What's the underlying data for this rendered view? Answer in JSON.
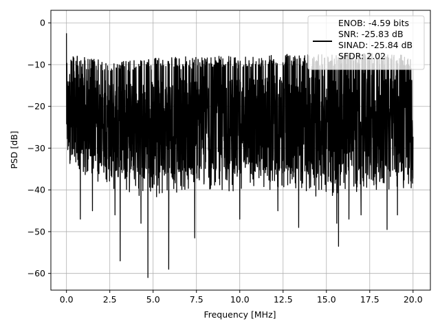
{
  "chart_data": {
    "type": "line",
    "title": "",
    "xlabel": "Frequency [MHz]",
    "ylabel": "PSD [dB]",
    "xlim": [
      -0.9,
      21.0
    ],
    "ylim": [
      -64,
      3
    ],
    "grid": true,
    "legend_position": "top-right",
    "x_ticks": [
      0.0,
      2.5,
      5.0,
      7.5,
      10.0,
      12.5,
      15.0,
      17.5,
      20.0
    ],
    "x_tick_labels": [
      "0.0",
      "2.5",
      "5.0",
      "7.5",
      "10.0",
      "12.5",
      "15.0",
      "17.5",
      "20.0"
    ],
    "y_ticks": [
      0,
      -10,
      -20,
      -30,
      -40,
      -50,
      -60
    ],
    "y_tick_labels": [
      "0",
      "−10",
      "−20",
      "−30",
      "−40",
      "−50",
      "−60"
    ],
    "series": [
      {
        "color": "#000000",
        "x_range": [
          0.0,
          20.0
        ],
        "peak": {
          "x": 0.0,
          "y": -2.5
        },
        "upper_envelope": [
          [
            0.0,
            -7.0
          ],
          [
            2.5,
            -9.5
          ],
          [
            5.0,
            -8.5
          ],
          [
            7.5,
            -8.0
          ],
          [
            10.0,
            -8.0
          ],
          [
            12.5,
            -7.5
          ],
          [
            15.0,
            -7.5
          ],
          [
            17.5,
            -7.0
          ],
          [
            20.0,
            -8.0
          ]
        ],
        "lower_envelope": [
          [
            0.0,
            -34.0
          ],
          [
            2.5,
            -40.0
          ],
          [
            5.0,
            -42.0
          ],
          [
            7.5,
            -40.0
          ],
          [
            10.0,
            -41.0
          ],
          [
            12.5,
            -40.0
          ],
          [
            15.0,
            -42.0
          ],
          [
            17.5,
            -40.0
          ],
          [
            20.0,
            -40.0
          ]
        ],
        "deep_notches": [
          [
            0.8,
            -47
          ],
          [
            1.5,
            -45
          ],
          [
            2.8,
            -46
          ],
          [
            3.1,
            -57
          ],
          [
            4.3,
            -48
          ],
          [
            4.7,
            -61
          ],
          [
            5.9,
            -59
          ],
          [
            7.4,
            -51.5
          ],
          [
            10.0,
            -47
          ],
          [
            12.2,
            -45
          ],
          [
            13.4,
            -49
          ],
          [
            15.6,
            -48
          ],
          [
            15.7,
            -53.5
          ],
          [
            16.3,
            -47
          ],
          [
            17.0,
            -46
          ],
          [
            18.5,
            -49.5
          ],
          [
            19.1,
            -46
          ]
        ]
      }
    ],
    "legend": {
      "entries": [
        "ENOB: -4.59 bits",
        "SNR: -25.83 dB",
        "SINAD: -25.84 dB",
        "SFDR: 2.02"
      ]
    }
  }
}
